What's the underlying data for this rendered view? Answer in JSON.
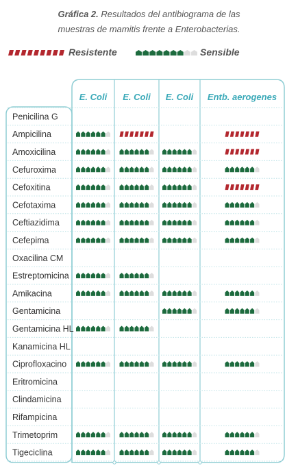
{
  "header": {
    "title_bold": "Gráfica 2.",
    "title_rest": " Resultados del antibiograma de las",
    "title_line2": "muestras de mamitis  frente a Enterobacterias."
  },
  "legend": {
    "resistant_label": "Resistente",
    "sensitive_label": "Sensible"
  },
  "colors": {
    "resistant": "#b3272e",
    "sensitive": "#1d6b3e",
    "empty": "#dddddd",
    "frame": "#8fcdd4",
    "header_text": "#3aa9b8",
    "dots": "#bfe3e7"
  },
  "chart_data": {
    "type": "table",
    "columns": [
      "E. Coli",
      "E. Coli",
      "E. Coli",
      "Entb. aerogenes"
    ],
    "rows": [
      {
        "antibiotic": "Penicilina G",
        "results": [
          "",
          "",
          "",
          ""
        ]
      },
      {
        "antibiotic": "Ampicilina",
        "results": [
          "S",
          "R",
          "",
          "R"
        ]
      },
      {
        "antibiotic": "Amoxicilina",
        "results": [
          "S",
          "S",
          "S",
          "R"
        ]
      },
      {
        "antibiotic": "Cefuroxima",
        "results": [
          "S",
          "S",
          "S",
          "S"
        ]
      },
      {
        "antibiotic": "Cefoxitina",
        "results": [
          "S",
          "S",
          "S",
          "R"
        ]
      },
      {
        "antibiotic": "Cefotaxima",
        "results": [
          "S",
          "S",
          "S",
          "S"
        ]
      },
      {
        "antibiotic": "Ceftiazidima",
        "results": [
          "S",
          "S",
          "S",
          "S"
        ]
      },
      {
        "antibiotic": "Cefepima",
        "results": [
          "S",
          "S",
          "S",
          "S"
        ]
      },
      {
        "antibiotic": "Oxacilina CM",
        "results": [
          "",
          "",
          "",
          ""
        ]
      },
      {
        "antibiotic": "Estreptomicina",
        "results": [
          "S",
          "S",
          "",
          ""
        ]
      },
      {
        "antibiotic": "Amikacina",
        "results": [
          "S",
          "S",
          "S",
          "S"
        ]
      },
      {
        "antibiotic": "Gentamicina",
        "results": [
          "",
          "",
          "S",
          "S"
        ]
      },
      {
        "antibiotic": "Gentamicina HL",
        "results": [
          "S",
          "S",
          "",
          ""
        ]
      },
      {
        "antibiotic": "Kanamicina HL",
        "results": [
          "",
          "",
          "",
          ""
        ]
      },
      {
        "antibiotic": "Ciprofloxacino",
        "results": [
          "S",
          "S",
          "S",
          "S"
        ]
      },
      {
        "antibiotic": "Eritromicina",
        "results": [
          "",
          "",
          "",
          ""
        ]
      },
      {
        "antibiotic": "Clindamicina",
        "results": [
          "",
          "",
          "",
          ""
        ]
      },
      {
        "antibiotic": "Rifampicina",
        "results": [
          "",
          "",
          "",
          ""
        ]
      },
      {
        "antibiotic": "Trimetoprim",
        "results": [
          "S",
          "S",
          "S",
          "S"
        ]
      },
      {
        "antibiotic": "Tigeciclina",
        "results": [
          "S",
          "S",
          "S",
          "S"
        ]
      }
    ]
  }
}
